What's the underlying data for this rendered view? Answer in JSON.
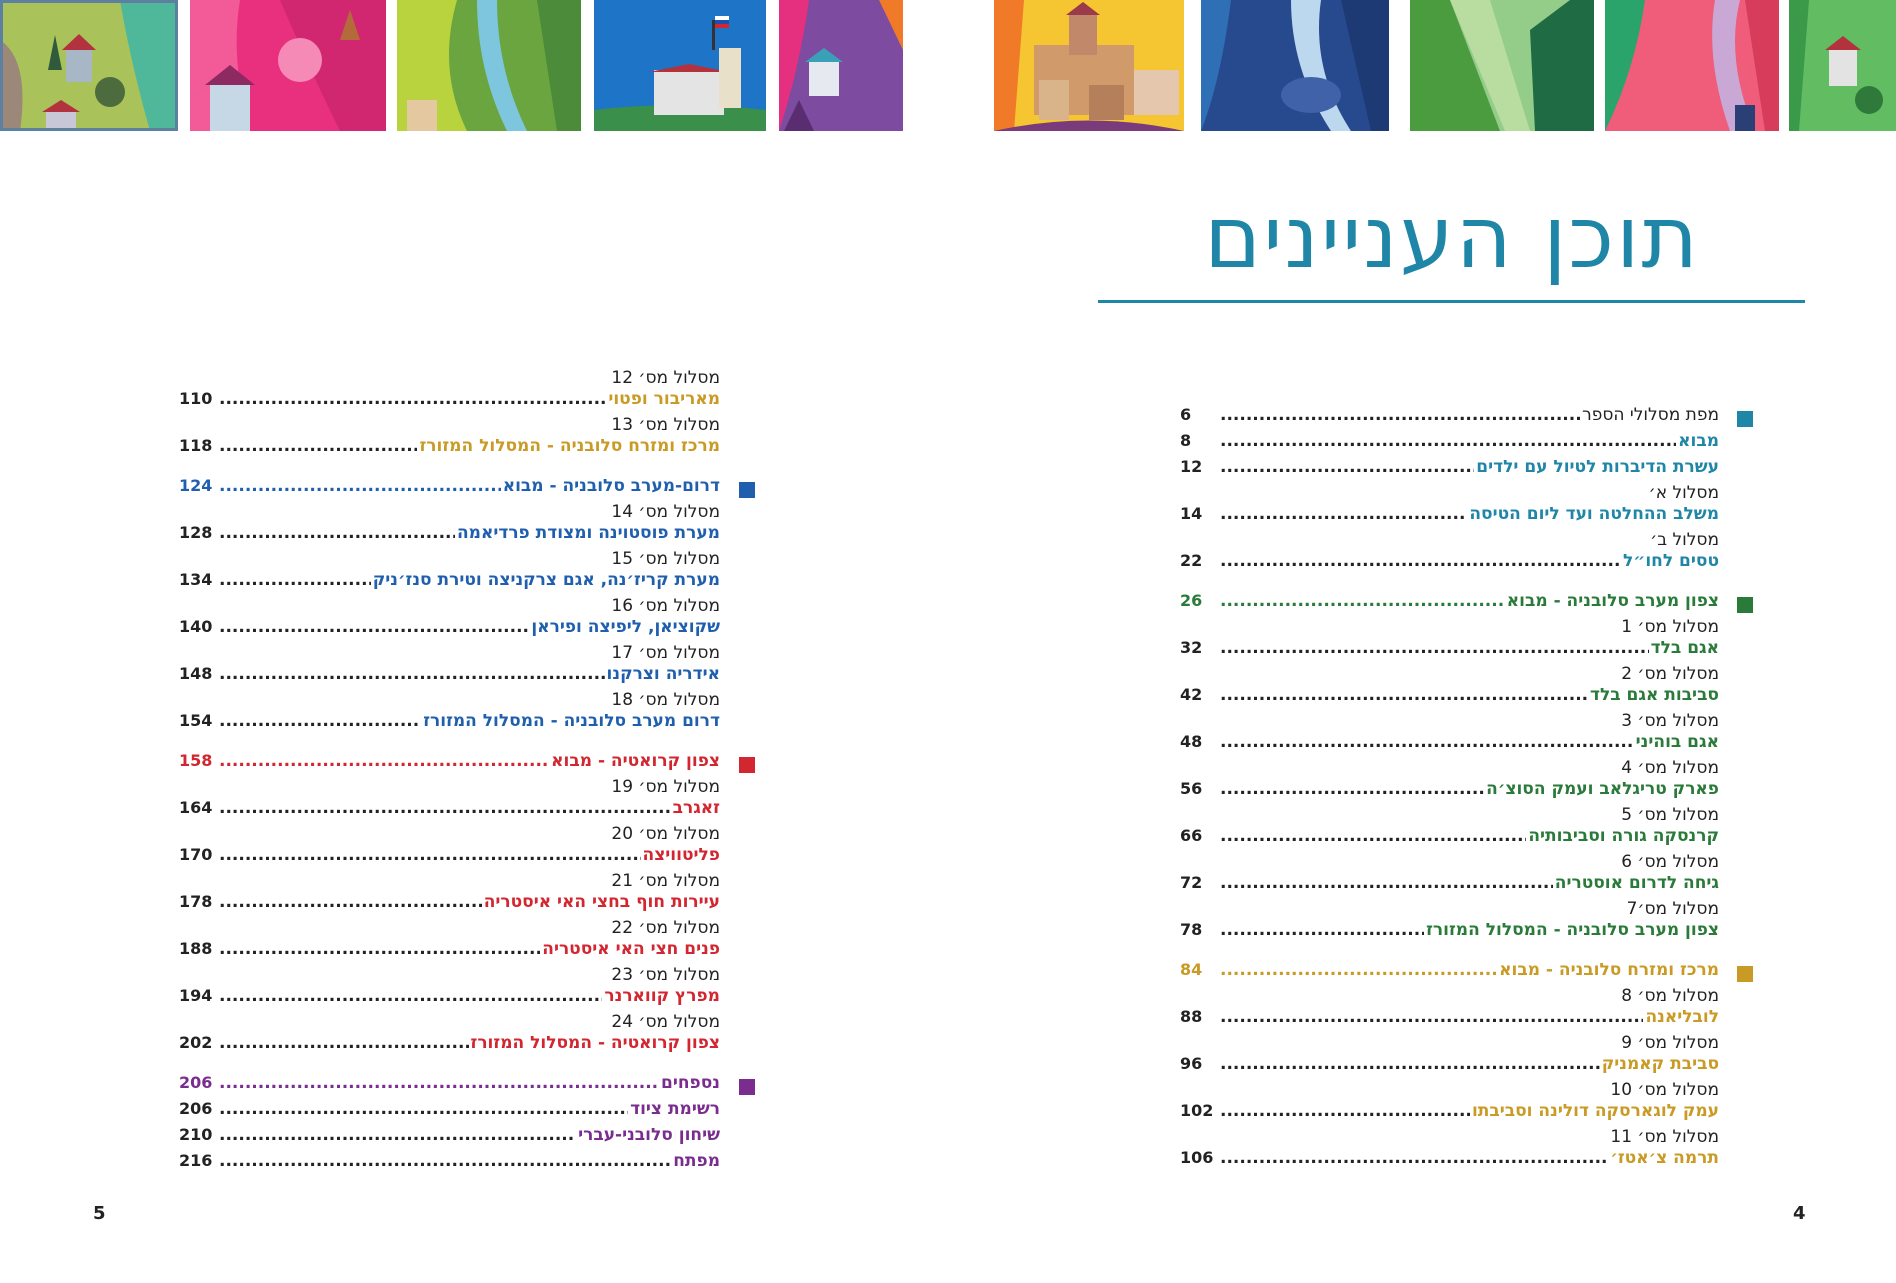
{
  "title": "תוכן העניינים",
  "page_numbers": {
    "right": "4",
    "left": "5"
  },
  "colors": {
    "intro": "#1f86a8",
    "north_west": "#2a7a3a",
    "center_east": "#c99a24",
    "south_west": "#1f5fae",
    "croatia": "#d22630",
    "appendix": "#7a2d8f",
    "title": "#1f86a8"
  },
  "right_column": {
    "sections": [
      {
        "color": "#1f86a8",
        "marker": true,
        "rows": [
          {
            "label": "מפת מסלולי הספר",
            "page": "6",
            "bold": false
          },
          {
            "label": "מבוא",
            "page": "8",
            "bold": true
          },
          {
            "label": "עשרת הדיברות לטיול עם ילדים",
            "page": "12",
            "bold": true
          },
          {
            "sub": "מסלול א׳",
            "label": "משלב ההחלטה ועד ליום הטיסה",
            "page": "14",
            "bold": true
          },
          {
            "sub": "מסלול ב׳",
            "label": "טסים לחו״ל",
            "page": "22",
            "bold": true
          }
        ]
      },
      {
        "color": "#2a7a3a",
        "marker": true,
        "header": {
          "label": "צפון מערב סלובניה - מבוא",
          "page": "26"
        },
        "rows": [
          {
            "sub": "מסלול מס׳ 1",
            "label": "אגם בלד",
            "page": "32"
          },
          {
            "sub": "מסלול מס׳ 2",
            "label": "סביבות אגם בלד",
            "page": "42"
          },
          {
            "sub": "מסלול מס׳ 3",
            "label": "אגם בוהיני",
            "page": "48"
          },
          {
            "sub": "מסלול מס׳ 4",
            "label": "פארק טריגלאב ועמק הסוצ׳ה",
            "page": "56"
          },
          {
            "sub": "מסלול מס׳ 5",
            "label": "קרנסקה גורה וסביבותיה",
            "page": "66"
          },
          {
            "sub": "מסלול מס׳ 6",
            "label": "גיחה לדרום אוסטריה",
            "page": "72"
          },
          {
            "sub": "מסלול מס׳7",
            "label": "צפון מערב סלובניה - המסלול המזורז",
            "page": "78"
          }
        ]
      },
      {
        "color": "#c99a24",
        "marker": true,
        "header": {
          "label": "מרכז ומזרח סלובניה - מבוא",
          "page": "84"
        },
        "rows": [
          {
            "sub": "מסלול מס׳ 8",
            "label": "לובליאנה",
            "page": "88"
          },
          {
            "sub": "מסלול מס׳ 9",
            "label": "סביבת קאמניק",
            "page": "96"
          },
          {
            "sub": "מסלול מס׳ 10",
            "label": "עמק לוגארסקה דולינה וסביבתו",
            "page": "102"
          },
          {
            "sub": "מסלול מס׳ 11",
            "label": "תרמה צ׳אטז׳",
            "page": "106"
          }
        ]
      }
    ]
  },
  "left_column": {
    "sections": [
      {
        "color": "#c99a24",
        "marker": false,
        "rows": [
          {
            "sub": "מסלול מס׳ 12",
            "label": "מאריבור ופטוי",
            "page": "110"
          },
          {
            "sub": "מסלול מס׳ 13",
            "label": "מרכז ומזרח סלובניה - המסלול המזורז",
            "page": "118"
          }
        ]
      },
      {
        "color": "#1f5fae",
        "marker": true,
        "header": {
          "label": "דרום-מערב סלובניה - מבוא",
          "page": "124"
        },
        "rows": [
          {
            "sub": "מסלול מס׳ 14",
            "label": "מערת פוסטוינה ומצודת פרדיאמה",
            "page": "128"
          },
          {
            "sub": "מסלול מס׳ 15",
            "label": "מערת קריז׳נה, אגם צרקניצה וטירת סנז׳ניק",
            "page": "134"
          },
          {
            "sub": "מסלול מס׳ 16",
            "label": "שקוציאן, ליפיצה ופיראן",
            "page": "140"
          },
          {
            "sub": "מסלול מס׳ 17",
            "label": "אידריה וצרקנו",
            "page": "148"
          },
          {
            "sub": "מסלול מס׳ 18",
            "label": "דרום מערב סלובניה - המסלול המזורז",
            "page": "154"
          }
        ]
      },
      {
        "color": "#d22630",
        "marker": true,
        "header": {
          "label": "צפון קרואטיה - מבוא",
          "page": "158"
        },
        "rows": [
          {
            "sub": "מסלול מס׳ 19",
            "label": "זאגרב",
            "page": "164"
          },
          {
            "sub": "מסלול מס׳ 20",
            "label": "פליטוויצה",
            "page": "170"
          },
          {
            "sub": "מסלול מס׳ 21",
            "label": "עיירות חוף בחצי האי איסטריה",
            "page": "178"
          },
          {
            "sub": "מסלול מס׳ 22",
            "label": "פנים חצי האי איסטריה",
            "page": "188"
          },
          {
            "sub": "מסלול מס׳ 23",
            "label": "מפרץ קווארנר",
            "page": "194"
          },
          {
            "sub": "מסלול מס׳ 24",
            "label": "צפון קרואטיה - המסלול המזורז",
            "page": "202"
          }
        ]
      },
      {
        "color": "#7a2d8f",
        "marker": true,
        "header": {
          "label": "נספחים",
          "page": "206"
        },
        "rows": [
          {
            "label": "רשימת ציוד",
            "page": "206"
          },
          {
            "label": "שיחון סלובני-עברי",
            "page": "210"
          },
          {
            "label": "מפתח",
            "page": "216"
          }
        ]
      }
    ]
  },
  "illustrations": [
    {
      "name": "illustration-lake-village"
    },
    {
      "name": "illustration-pink-houses"
    },
    {
      "name": "illustration-green-river"
    },
    {
      "name": "illustration-castle-flag"
    },
    {
      "name": "illustration-purple-house"
    },
    {
      "name": "illustration-town-hill"
    },
    {
      "name": "illustration-blue-river"
    },
    {
      "name": "illustration-green-mountains"
    },
    {
      "name": "illustration-pink-valley"
    },
    {
      "name": "illustration-green-house"
    }
  ]
}
